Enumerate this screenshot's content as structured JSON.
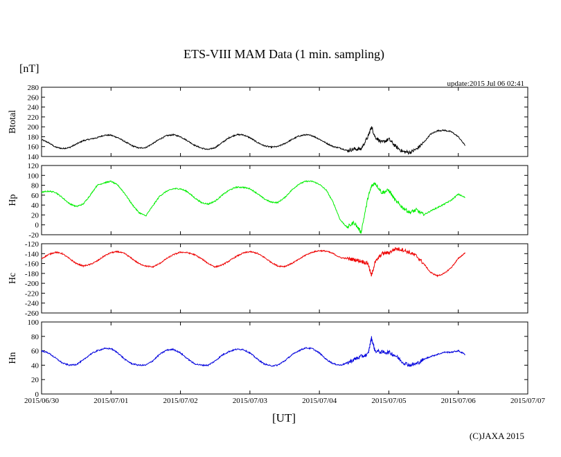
{
  "chart_data": {
    "type": "line",
    "title": "ETS-VIII MAM Data (1 min. sampling)",
    "unit_label": "[nT]",
    "update_text": "update:2015 Jul 06 02:41",
    "xlabel": "[UT]",
    "copyright": "(C)JAXA 2015",
    "x_range_days": [
      0,
      7
    ],
    "x_tick_labels": [
      "2015/06/30",
      "2015/07/01",
      "2015/07/02",
      "2015/07/03",
      "2015/07/04",
      "2015/07/05",
      "2015/07/06",
      "2015/07/07"
    ],
    "x_ticks_days": [
      0,
      1,
      2,
      3,
      4,
      5,
      6,
      7
    ],
    "sample_days": [
      0,
      0.1,
      0.2,
      0.3,
      0.4,
      0.5,
      0.6,
      0.7,
      0.8,
      0.9,
      1.0,
      1.1,
      1.2,
      1.3,
      1.4,
      1.5,
      1.6,
      1.7,
      1.8,
      1.9,
      2.0,
      2.1,
      2.2,
      2.3,
      2.4,
      2.5,
      2.6,
      2.7,
      2.8,
      2.9,
      3.0,
      3.1,
      3.2,
      3.3,
      3.4,
      3.5,
      3.6,
      3.7,
      3.8,
      3.9,
      4.0,
      4.1,
      4.2,
      4.3,
      4.4,
      4.5,
      4.6,
      4.7,
      4.75,
      4.8,
      4.9,
      5.0,
      5.1,
      5.2,
      5.3,
      5.4,
      5.5,
      5.6,
      5.7,
      5.8,
      5.9,
      6.0,
      6.1
    ],
    "panels": [
      {
        "name": "Btotal",
        "ylabel": "Btotal",
        "color": "#000000",
        "ylim": [
          140,
          280
        ],
        "yticks": [
          140,
          160,
          180,
          200,
          220,
          240,
          260,
          280
        ],
        "values": [
          174,
          168,
          159,
          156,
          158,
          165,
          172,
          175,
          178,
          183,
          183,
          178,
          170,
          162,
          157,
          158,
          166,
          175,
          182,
          184,
          180,
          172,
          163,
          157,
          154,
          158,
          168,
          178,
          184,
          184,
          178,
          169,
          162,
          159,
          160,
          166,
          174,
          181,
          184,
          182,
          175,
          167,
          160,
          157,
          152,
          155,
          155,
          180,
          200,
          180,
          168,
          175,
          160,
          150,
          148,
          155,
          168,
          185,
          192,
          193,
          190,
          180,
          162
        ]
      },
      {
        "name": "Hp",
        "ylabel": "Hp",
        "color": "#00ee00",
        "ylim": [
          -20,
          120
        ],
        "yticks": [
          -20,
          0,
          20,
          40,
          60,
          80,
          100,
          120
        ],
        "values": [
          66,
          68,
          66,
          55,
          43,
          37,
          42,
          60,
          80,
          85,
          88,
          80,
          63,
          42,
          25,
          18,
          38,
          58,
          68,
          73,
          73,
          67,
          55,
          45,
          42,
          48,
          60,
          70,
          76,
          76,
          73,
          64,
          53,
          46,
          45,
          55,
          70,
          82,
          88,
          88,
          82,
          70,
          45,
          10,
          -5,
          5,
          -15,
          55,
          78,
          85,
          65,
          70,
          48,
          35,
          25,
          30,
          20,
          28,
          35,
          42,
          50,
          62,
          55
        ]
      },
      {
        "name": "Hc",
        "ylabel": "Hc",
        "color": "#ee0000",
        "ylim": [
          -260,
          -120
        ],
        "yticks": [
          -260,
          -240,
          -220,
          -200,
          -180,
          -160,
          -140,
          -120
        ],
        "values": [
          -150,
          -142,
          -137,
          -140,
          -150,
          -160,
          -165,
          -162,
          -155,
          -145,
          -138,
          -136,
          -140,
          -150,
          -160,
          -165,
          -167,
          -160,
          -150,
          -142,
          -137,
          -138,
          -142,
          -150,
          -160,
          -167,
          -163,
          -155,
          -146,
          -139,
          -136,
          -139,
          -147,
          -157,
          -165,
          -166,
          -160,
          -152,
          -143,
          -137,
          -134,
          -135,
          -140,
          -148,
          -150,
          -152,
          -155,
          -160,
          -185,
          -158,
          -140,
          -138,
          -130,
          -132,
          -138,
          -145,
          -160,
          -178,
          -185,
          -180,
          -168,
          -150,
          -138
        ]
      },
      {
        "name": "Hn",
        "ylabel": "Hn",
        "color": "#0000dd",
        "ylim": [
          0,
          100
        ],
        "yticks": [
          0,
          20,
          40,
          60,
          80,
          100
        ],
        "values": [
          60,
          57,
          50,
          43,
          40,
          41,
          47,
          55,
          60,
          63,
          63,
          57,
          48,
          42,
          40,
          40,
          46,
          55,
          61,
          62,
          57,
          49,
          42,
          40,
          40,
          46,
          54,
          59,
          62,
          62,
          57,
          49,
          42,
          39,
          40,
          46,
          54,
          60,
          64,
          63,
          57,
          48,
          42,
          40,
          43,
          48,
          52,
          55,
          78,
          60,
          58,
          58,
          53,
          44,
          40,
          42,
          48,
          52,
          55,
          58,
          58,
          60,
          55
        ]
      }
    ]
  }
}
